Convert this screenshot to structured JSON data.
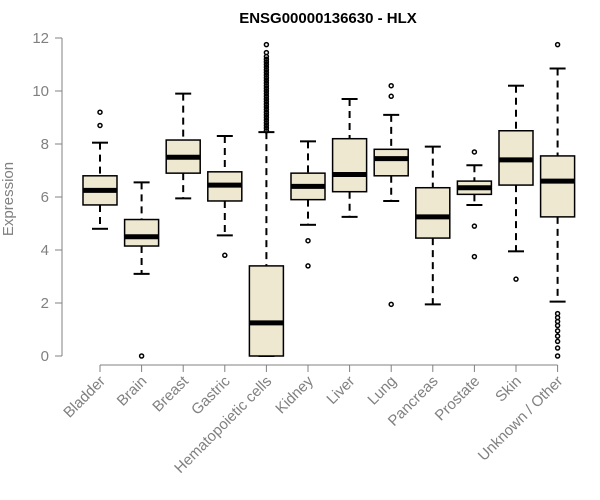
{
  "chart_data": {
    "type": "boxplot",
    "title": "ENSG00000136630 - HLX",
    "xlabel": "",
    "ylabel": "Expression",
    "ylim": [
      0,
      12
    ],
    "yticks": [
      "0",
      "2",
      "4",
      "6",
      "8",
      "10",
      "12"
    ],
    "box_color": "#EEE8D0",
    "outline_color": "#000000",
    "categories": [
      "Bladder",
      "Brain",
      "Breast",
      "Gastric",
      "Hematopoietic cells",
      "Kidney",
      "Liver",
      "Lung",
      "Pancreas",
      "Prostate",
      "Skin",
      "Unknown / Other"
    ],
    "boxes": [
      {
        "name": "Bladder",
        "low": 4.8,
        "q1": 5.7,
        "median": 6.25,
        "q3": 6.8,
        "high": 8.05,
        "outliers": [
          8.7,
          9.2
        ]
      },
      {
        "name": "Brain",
        "low": 3.1,
        "q1": 4.15,
        "median": 4.5,
        "q3": 5.15,
        "high": 6.55,
        "outliers": [
          0.0
        ]
      },
      {
        "name": "Breast",
        "low": 5.95,
        "q1": 6.9,
        "median": 7.5,
        "q3": 8.15,
        "high": 9.9,
        "outliers": []
      },
      {
        "name": "Gastric",
        "low": 4.55,
        "q1": 5.85,
        "median": 6.45,
        "q3": 6.95,
        "high": 8.3,
        "outliers": [
          3.8
        ]
      },
      {
        "name": "Hematopoietic cells",
        "low": 0.0,
        "q1": 0.0,
        "median": 1.25,
        "q3": 3.4,
        "high": 8.45,
        "outliers": [
          8.5,
          8.6,
          8.7,
          8.8,
          8.9,
          9.0,
          9.1,
          9.2,
          9.3,
          9.4,
          9.5,
          9.6,
          9.7,
          9.8,
          9.9,
          10.0,
          10.1,
          10.2,
          10.3,
          10.4,
          10.5,
          10.6,
          10.7,
          10.8,
          10.9,
          11.0,
          11.1,
          11.2,
          11.3,
          11.45,
          11.75
        ]
      },
      {
        "name": "Kidney",
        "low": 4.95,
        "q1": 5.9,
        "median": 6.4,
        "q3": 6.9,
        "high": 8.1,
        "outliers": [
          4.35,
          3.4
        ]
      },
      {
        "name": "Liver",
        "low": 5.25,
        "q1": 6.2,
        "median": 6.85,
        "q3": 8.2,
        "high": 9.7,
        "outliers": []
      },
      {
        "name": "Lung",
        "low": 5.85,
        "q1": 6.8,
        "median": 7.45,
        "q3": 7.8,
        "high": 9.1,
        "outliers": [
          9.8,
          10.2,
          1.95
        ]
      },
      {
        "name": "Pancreas",
        "low": 1.95,
        "q1": 4.45,
        "median": 5.25,
        "q3": 6.35,
        "high": 7.9,
        "outliers": []
      },
      {
        "name": "Prostate",
        "low": 5.7,
        "q1": 6.1,
        "median": 6.35,
        "q3": 6.6,
        "high": 7.2,
        "outliers": [
          7.7,
          4.9,
          3.75
        ]
      },
      {
        "name": "Skin",
        "low": 3.95,
        "q1": 6.45,
        "median": 7.4,
        "q3": 8.5,
        "high": 10.2,
        "outliers": [
          2.9
        ]
      },
      {
        "name": "Unknown / Other",
        "low": 2.05,
        "q1": 5.25,
        "median": 6.6,
        "q3": 7.55,
        "high": 10.85,
        "outliers": [
          11.75,
          1.6,
          1.45,
          1.3,
          1.15,
          0.95,
          0.75,
          0.55,
          0.3,
          0.0
        ]
      }
    ]
  }
}
